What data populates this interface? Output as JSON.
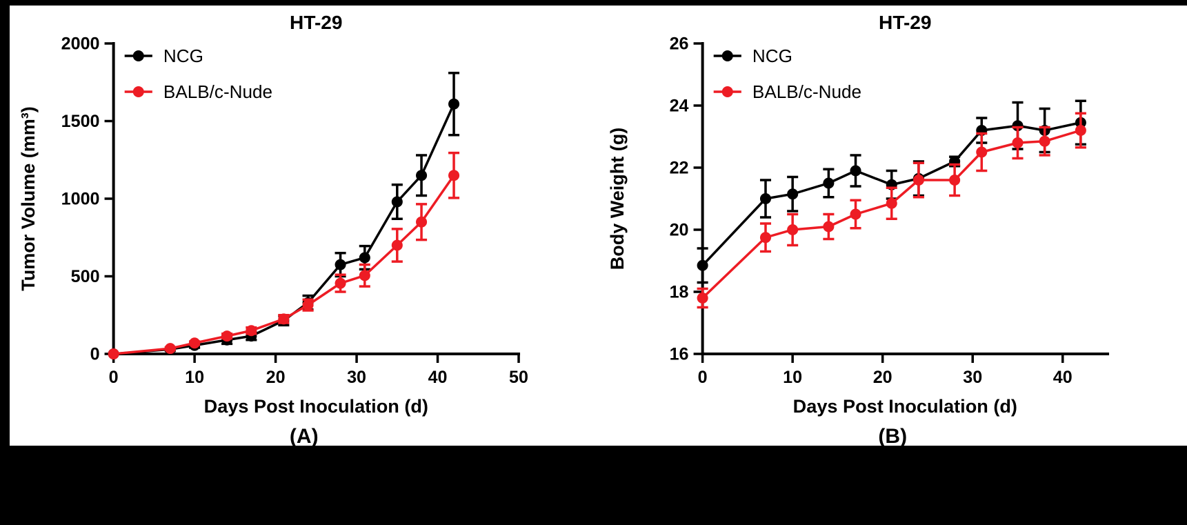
{
  "page": {
    "background_color": "#000000",
    "figure_background_color": "#ffffff"
  },
  "chart_data": [
    {
      "type": "line",
      "title": "HT-29",
      "xlabel": "Days Post Inoculation (d)",
      "ylabel": "Tumor Volume (mm³)",
      "panel_label": "(A)",
      "xlim": [
        0,
        50
      ],
      "ylim": [
        0,
        2000
      ],
      "xticks": [
        0,
        10,
        20,
        30,
        40,
        50
      ],
      "yticks": [
        0,
        500,
        1000,
        1500,
        2000
      ],
      "grid": false,
      "legend_position": "top-left",
      "x": [
        0,
        7,
        10,
        14,
        17,
        21,
        24,
        28,
        31,
        35,
        38,
        42
      ],
      "series": [
        {
          "name": "NCG",
          "color": "#000000",
          "values": [
            0,
            30,
            55,
            90,
            115,
            215,
            330,
            575,
            620,
            980,
            1150,
            1610
          ],
          "errors": [
            0,
            10,
            15,
            25,
            25,
            30,
            45,
            75,
            75,
            110,
            130,
            200
          ]
        },
        {
          "name": "BALB/c-Nude",
          "color": "#ED1C24",
          "values": [
            0,
            35,
            70,
            115,
            150,
            225,
            315,
            455,
            505,
            700,
            850,
            1150
          ],
          "errors": [
            0,
            8,
            10,
            15,
            20,
            25,
            35,
            55,
            70,
            105,
            115,
            145
          ]
        }
      ]
    },
    {
      "type": "line",
      "title": "HT-29",
      "xlabel": "Days Post Inoculation (d)",
      "ylabel": "Body Weight (g)",
      "panel_label": "(B)",
      "xlim": [
        0,
        45
      ],
      "ylim": [
        16,
        26
      ],
      "xticks": [
        0,
        10,
        20,
        30,
        40
      ],
      "yticks": [
        16,
        18,
        20,
        22,
        24,
        26
      ],
      "grid": false,
      "legend_position": "top-left",
      "x": [
        0,
        7,
        10,
        14,
        17,
        21,
        24,
        28,
        31,
        35,
        38,
        42
      ],
      "series": [
        {
          "name": "NCG",
          "color": "#000000",
          "values": [
            18.85,
            21.0,
            21.15,
            21.5,
            21.9,
            21.45,
            21.65,
            22.2,
            23.2,
            23.35,
            23.2,
            23.45
          ],
          "errors": [
            0.55,
            0.6,
            0.55,
            0.45,
            0.5,
            0.45,
            0.55,
            0.15,
            0.4,
            0.75,
            0.7,
            0.7
          ]
        },
        {
          "name": "BALB/c-Nude",
          "color": "#ED1C24",
          "values": [
            17.8,
            19.75,
            20.0,
            20.1,
            20.5,
            20.85,
            21.6,
            21.6,
            22.5,
            22.8,
            22.85,
            23.2
          ],
          "errors": [
            0.3,
            0.45,
            0.5,
            0.4,
            0.45,
            0.5,
            0.55,
            0.5,
            0.6,
            0.5,
            0.45,
            0.55
          ]
        }
      ]
    }
  ]
}
